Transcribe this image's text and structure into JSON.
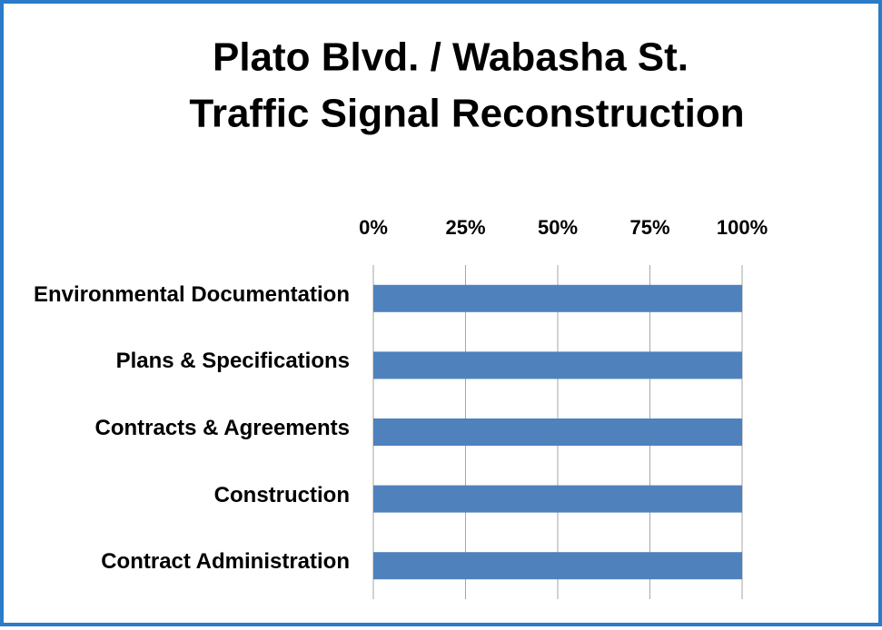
{
  "chart_data": {
    "type": "bar",
    "orientation": "horizontal",
    "title": [
      "Plato Blvd. / Wabasha St.",
      "Traffic Signal Reconstruction"
    ],
    "categories": [
      "Environmental Documentation",
      "Plans & Specifications",
      "Contracts & Agreements",
      "Construction",
      "Contract Administration"
    ],
    "values": [
      100,
      100,
      100,
      100,
      100
    ],
    "color": "#4f81bd",
    "xlim": [
      0,
      100
    ],
    "xticks": [
      {
        "value": 0,
        "label": "0%"
      },
      {
        "value": 25,
        "label": "25%"
      },
      {
        "value": 50,
        "label": "50%"
      },
      {
        "value": 75,
        "label": "75%"
      },
      {
        "value": 100,
        "label": "100%"
      }
    ],
    "grid": true
  }
}
